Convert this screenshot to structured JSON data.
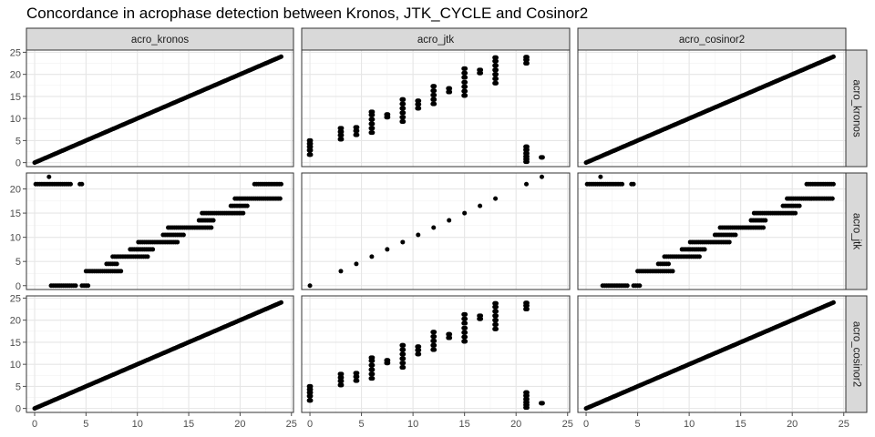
{
  "title": "Concordance in acrophase detection between Kronos, JTK_CYCLE and Cosinor2",
  "colors": {
    "point": "#000000",
    "strip_fill": "#d9d9d9",
    "strip_border": "#333333",
    "panel_border": "#333333",
    "grid_major": "#e6e6e6",
    "grid_minor": "#f2f2f2",
    "axis_text": "#4d4d4d"
  },
  "facet_columns": [
    "acro_kronos",
    "acro_jtk",
    "acro_cosinor2"
  ],
  "facet_rows": [
    "acro_kronos",
    "acro_jtk",
    "acro_cosinor2"
  ],
  "chart_data": {
    "type": "scatter",
    "layout": "facet_grid",
    "grid": true,
    "legend": "none",
    "col_scales": {
      "acro_kronos": {
        "xlim": [
          -0.8,
          25.2
        ],
        "ticks": [
          0,
          5,
          10,
          15,
          20,
          25
        ]
      },
      "acro_jtk": {
        "xlim": [
          -0.8,
          25.2
        ],
        "ticks": [
          0,
          5,
          10,
          15,
          20,
          25
        ]
      },
      "acro_cosinor2": {
        "xlim": [
          -0.8,
          25.2
        ],
        "ticks": [
          0,
          5,
          10,
          15,
          20,
          25
        ]
      }
    },
    "row_scales": {
      "acro_kronos": {
        "ylim": [
          -0.9,
          25.5
        ],
        "ticks": [
          0,
          5,
          10,
          15,
          20,
          25
        ]
      },
      "acro_jtk": {
        "ylim": [
          -0.8,
          23.3
        ],
        "ticks": [
          0,
          5,
          10,
          15,
          20
        ]
      },
      "acro_cosinor2": {
        "ylim": [
          -0.9,
          25.5
        ],
        "ticks": [
          0,
          5,
          10,
          15,
          20,
          25
        ]
      }
    },
    "panels": [
      {
        "col": "acro_kronos",
        "row": "acro_kronos",
        "kind": "line",
        "x_range": [
          0,
          24
        ]
      },
      {
        "col": "acro_jtk",
        "row": "acro_kronos",
        "kind": "clusters",
        "points": [
          [
            0,
            1.8
          ],
          [
            0,
            2.8
          ],
          [
            0,
            3.6
          ],
          [
            0,
            4.3
          ],
          [
            0,
            5.0
          ],
          [
            3,
            5.3
          ],
          [
            3,
            6.2
          ],
          [
            3,
            7.0
          ],
          [
            3,
            7.8
          ],
          [
            4.5,
            6.3
          ],
          [
            4.5,
            7.2
          ],
          [
            4.5,
            8.0
          ],
          [
            6,
            6.8
          ],
          [
            6,
            7.8
          ],
          [
            6,
            8.8
          ],
          [
            6,
            9.8
          ],
          [
            6,
            10.8
          ],
          [
            6,
            11.5
          ],
          [
            7.5,
            10.3
          ],
          [
            7.5,
            10.9
          ],
          [
            9,
            9.3
          ],
          [
            9,
            10.3
          ],
          [
            9,
            11.3
          ],
          [
            9,
            12.3
          ],
          [
            9,
            13.3
          ],
          [
            9,
            14.3
          ],
          [
            10.5,
            12.3
          ],
          [
            10.5,
            13.2
          ],
          [
            10.5,
            14.0
          ],
          [
            12,
            13.3
          ],
          [
            12,
            14.3
          ],
          [
            12,
            15.3
          ],
          [
            12,
            16.3
          ],
          [
            12,
            17.3
          ],
          [
            13.5,
            16.0
          ],
          [
            13.5,
            16.8
          ],
          [
            15,
            15.2
          ],
          [
            15,
            16.2
          ],
          [
            15,
            17.2
          ],
          [
            15,
            18.2
          ],
          [
            15,
            19.3
          ],
          [
            15,
            20.3
          ],
          [
            15,
            21.3
          ],
          [
            16.5,
            20.3
          ],
          [
            16.5,
            21.0
          ],
          [
            18,
            18.0
          ],
          [
            18,
            19.0
          ],
          [
            18,
            20.0
          ],
          [
            18,
            21.0
          ],
          [
            18,
            22.0
          ],
          [
            18,
            23.0
          ],
          [
            18,
            23.8
          ],
          [
            21,
            22.5
          ],
          [
            21,
            23.3
          ],
          [
            21,
            23.9
          ],
          [
            21,
            0.2
          ],
          [
            21,
            0.8
          ],
          [
            21,
            1.4
          ],
          [
            21,
            2.1
          ],
          [
            21,
            2.9
          ],
          [
            21,
            3.6
          ],
          [
            22.5,
            1.2
          ]
        ]
      },
      {
        "col": "acro_cosinor2",
        "row": "acro_kronos",
        "kind": "line",
        "x_range": [
          0,
          24
        ]
      },
      {
        "col": "acro_kronos",
        "row": "acro_jtk",
        "kind": "steps",
        "steps": [
          [
            0.1,
            3.6,
            21
          ],
          [
            4.4,
            4.6,
            21
          ],
          [
            1.4,
            1.5,
            22.5
          ],
          [
            1.6,
            4.0,
            0
          ],
          [
            4.6,
            5.2,
            0
          ],
          [
            5.0,
            8.5,
            3
          ],
          [
            7.0,
            8.0,
            4.5
          ],
          [
            7.6,
            11.0,
            6
          ],
          [
            9.3,
            11.5,
            7.5
          ],
          [
            10.1,
            13.9,
            9
          ],
          [
            12.5,
            14.5,
            10.5
          ],
          [
            13.0,
            17.2,
            12
          ],
          [
            16.0,
            17.5,
            13.5
          ],
          [
            16.3,
            20.4,
            15
          ],
          [
            19.1,
            20.8,
            16.5
          ],
          [
            19.5,
            23.9,
            18
          ],
          [
            21.4,
            24.0,
            21
          ]
        ]
      },
      {
        "col": "acro_jtk",
        "row": "acro_jtk",
        "kind": "diagonal",
        "points": [
          [
            0,
            0
          ],
          [
            3,
            3
          ],
          [
            4.5,
            4.5
          ],
          [
            6,
            6
          ],
          [
            7.5,
            7.5
          ],
          [
            9,
            9
          ],
          [
            10.5,
            10.5
          ],
          [
            12,
            12
          ],
          [
            13.5,
            13.5
          ],
          [
            15,
            15
          ],
          [
            16.5,
            16.5
          ],
          [
            18,
            18
          ],
          [
            21,
            21
          ],
          [
            22.5,
            22.5
          ]
        ]
      },
      {
        "col": "acro_cosinor2",
        "row": "acro_jtk",
        "kind": "steps",
        "steps": [
          [
            0.1,
            3.6,
            21
          ],
          [
            4.4,
            4.6,
            21
          ],
          [
            1.4,
            1.5,
            22.5
          ],
          [
            1.6,
            4.0,
            0
          ],
          [
            4.6,
            5.2,
            0
          ],
          [
            5.0,
            8.5,
            3
          ],
          [
            7.0,
            8.0,
            4.5
          ],
          [
            7.6,
            11.0,
            6
          ],
          [
            9.3,
            11.5,
            7.5
          ],
          [
            10.1,
            13.9,
            9
          ],
          [
            12.5,
            14.5,
            10.5
          ],
          [
            13.0,
            17.2,
            12
          ],
          [
            16.0,
            17.5,
            13.5
          ],
          [
            16.3,
            20.4,
            15
          ],
          [
            19.1,
            20.8,
            16.5
          ],
          [
            19.5,
            23.9,
            18
          ],
          [
            21.4,
            24.0,
            21
          ]
        ]
      },
      {
        "col": "acro_kronos",
        "row": "acro_cosinor2",
        "kind": "line",
        "x_range": [
          0,
          24
        ]
      },
      {
        "col": "acro_jtk",
        "row": "acro_cosinor2",
        "kind": "clusters",
        "points": [
          [
            0,
            1.8
          ],
          [
            0,
            2.8
          ],
          [
            0,
            3.6
          ],
          [
            0,
            4.3
          ],
          [
            0,
            5.0
          ],
          [
            3,
            5.3
          ],
          [
            3,
            6.2
          ],
          [
            3,
            7.0
          ],
          [
            3,
            7.8
          ],
          [
            4.5,
            6.3
          ],
          [
            4.5,
            7.2
          ],
          [
            4.5,
            8.0
          ],
          [
            6,
            6.8
          ],
          [
            6,
            7.8
          ],
          [
            6,
            8.8
          ],
          [
            6,
            9.8
          ],
          [
            6,
            10.8
          ],
          [
            6,
            11.5
          ],
          [
            7.5,
            10.3
          ],
          [
            7.5,
            10.9
          ],
          [
            9,
            9.3
          ],
          [
            9,
            10.3
          ],
          [
            9,
            11.3
          ],
          [
            9,
            12.3
          ],
          [
            9,
            13.3
          ],
          [
            9,
            14.3
          ],
          [
            10.5,
            12.3
          ],
          [
            10.5,
            13.2
          ],
          [
            10.5,
            14.0
          ],
          [
            12,
            13.3
          ],
          [
            12,
            14.3
          ],
          [
            12,
            15.3
          ],
          [
            12,
            16.3
          ],
          [
            12,
            17.3
          ],
          [
            13.5,
            16.0
          ],
          [
            13.5,
            16.8
          ],
          [
            15,
            15.2
          ],
          [
            15,
            16.2
          ],
          [
            15,
            17.2
          ],
          [
            15,
            18.2
          ],
          [
            15,
            19.3
          ],
          [
            15,
            20.3
          ],
          [
            15,
            21.3
          ],
          [
            16.5,
            20.3
          ],
          [
            16.5,
            21.0
          ],
          [
            18,
            18.0
          ],
          [
            18,
            19.0
          ],
          [
            18,
            20.0
          ],
          [
            18,
            21.0
          ],
          [
            18,
            22.0
          ],
          [
            18,
            23.0
          ],
          [
            18,
            23.8
          ],
          [
            21,
            22.5
          ],
          [
            21,
            23.3
          ],
          [
            21,
            23.9
          ],
          [
            21,
            0.2
          ],
          [
            21,
            0.8
          ],
          [
            21,
            1.4
          ],
          [
            21,
            2.1
          ],
          [
            21,
            2.9
          ],
          [
            21,
            3.6
          ],
          [
            22.5,
            1.2
          ]
        ]
      },
      {
        "col": "acro_cosinor2",
        "row": "acro_cosinor2",
        "kind": "line",
        "x_range": [
          0,
          24
        ]
      }
    ]
  }
}
